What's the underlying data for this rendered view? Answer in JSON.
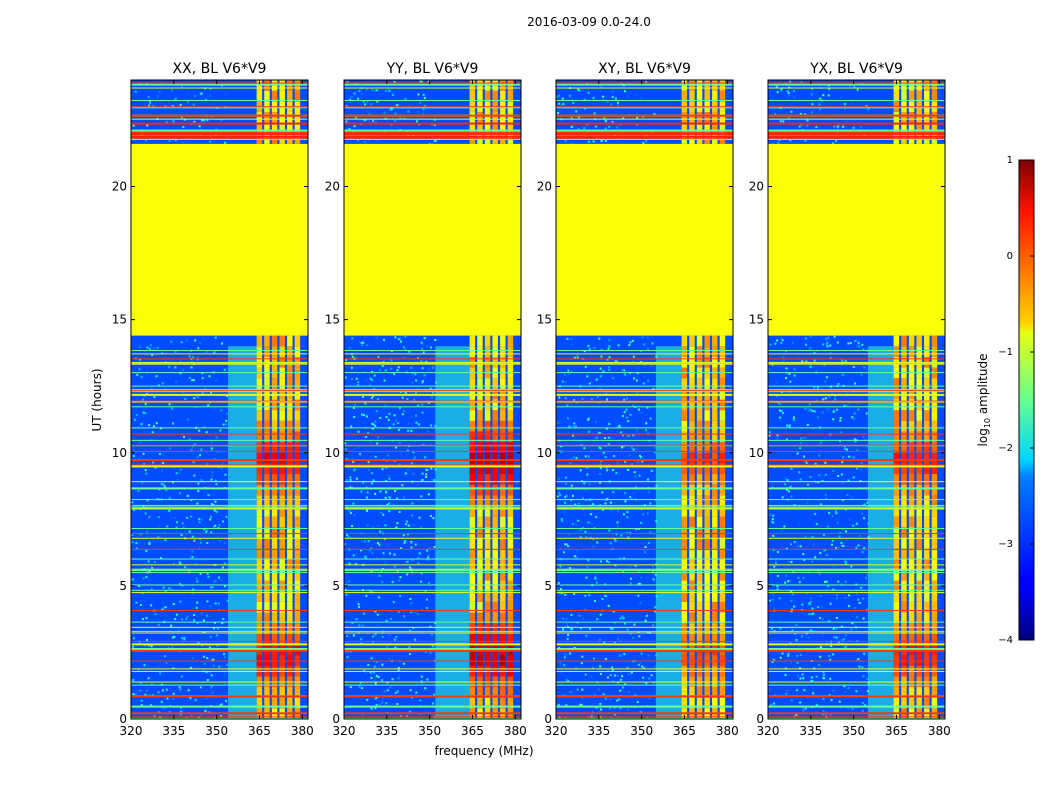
{
  "figure_title": "2016-03-09 0.0-24.0",
  "chart_data": {
    "type": "heatmap",
    "suptitle": "2016-03-09 0.0-24.0",
    "xlabel": "frequency (MHz)",
    "ylabel": "UT (hours)",
    "xlim": [
      320,
      382
    ],
    "ylim": [
      0,
      24
    ],
    "xticks": [
      320,
      335,
      350,
      365,
      380
    ],
    "yticks": [
      0,
      5,
      10,
      15,
      20
    ],
    "xtick_labels": [
      "320",
      "335",
      "350",
      "365",
      "380"
    ],
    "ytick_labels": [
      "0",
      "5",
      "10",
      "15",
      "20"
    ],
    "colormap": "jet",
    "color_scale": "log10 amplitude",
    "colorbar": {
      "label_prefix": "log",
      "label_sub": "10",
      "label_suffix": " amplitude",
      "range": [
        -4,
        1
      ],
      "ticks": [
        1,
        0,
        -1,
        -2,
        -3,
        -4
      ],
      "tick_labels": [
        "1",
        "0",
        "−1",
        "−2",
        "−3",
        "−4"
      ]
    },
    "flagged_block_ut": [
      14.4,
      21.6
    ],
    "flagged_block_log_amplitude": -0.9,
    "background_log_amplitude": -3.0,
    "band_freq_mhz": [
      364,
      380
    ],
    "panels": [
      {
        "title": "XX, BL V6*V9",
        "band_edge_mhz": 354,
        "peak_ut": [
          9.5,
          2.2
        ],
        "peak_log_amplitude": 0.3
      },
      {
        "title": "YY, BL V6*V9",
        "band_edge_mhz": 352,
        "peak_ut": [
          9.5,
          2.2
        ],
        "peak_log_amplitude": 0.6
      },
      {
        "title": "XY, BL V6*V9",
        "band_edge_mhz": 355,
        "peak_ut": [
          9.5,
          2.2
        ],
        "peak_log_amplitude": 0.0
      },
      {
        "title": "YX, BL V6*V9",
        "band_edge_mhz": 355,
        "peak_ut": [
          9.5,
          2.2
        ],
        "peak_log_amplitude": 0.2
      }
    ]
  }
}
